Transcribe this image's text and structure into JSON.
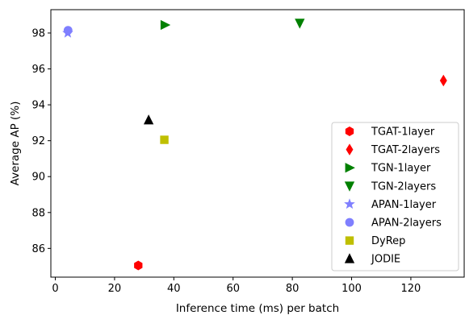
{
  "chart_data": {
    "type": "scatter",
    "title": "",
    "xlabel": "Inference time (ms) per batch",
    "ylabel": "Average AP (%)",
    "xlim": [
      -1.5,
      138
    ],
    "ylim": [
      84.4,
      99.3
    ],
    "x_ticks": [
      0,
      20,
      40,
      60,
      80,
      100,
      120
    ],
    "y_ticks": [
      86,
      88,
      90,
      92,
      94,
      96,
      98
    ],
    "grid": false,
    "legend_position": "lower-right",
    "series": [
      {
        "name": "TGAT-1layer",
        "marker": "hexagon",
        "color": "#ff0000",
        "points": [
          {
            "x": 28.0,
            "y": 85.05
          }
        ]
      },
      {
        "name": "TGAT-2layers",
        "marker": "thin-diamond",
        "color": "#ff0000",
        "points": [
          {
            "x": 131.0,
            "y": 95.35
          }
        ]
      },
      {
        "name": "TGN-1layer",
        "marker": "triangle-right",
        "color": "#008000",
        "points": [
          {
            "x": 37.0,
            "y": 98.45
          }
        ]
      },
      {
        "name": "TGN-2layers",
        "marker": "triangle-down",
        "color": "#008000",
        "points": [
          {
            "x": 82.5,
            "y": 98.55
          }
        ]
      },
      {
        "name": "APAN-1layer",
        "marker": "star",
        "color": "#7f7fff",
        "points": [
          {
            "x": 4.2,
            "y": 98.0
          }
        ]
      },
      {
        "name": "APAN-2layers",
        "marker": "circle",
        "color": "#7f7fff",
        "points": [
          {
            "x": 4.3,
            "y": 98.15
          }
        ]
      },
      {
        "name": "DyRep",
        "marker": "square",
        "color": "#bfbf00",
        "points": [
          {
            "x": 36.8,
            "y": 92.05
          }
        ]
      },
      {
        "name": "JODIE",
        "marker": "triangle-up",
        "color": "#000000",
        "points": [
          {
            "x": 31.5,
            "y": 93.15
          }
        ]
      }
    ]
  }
}
